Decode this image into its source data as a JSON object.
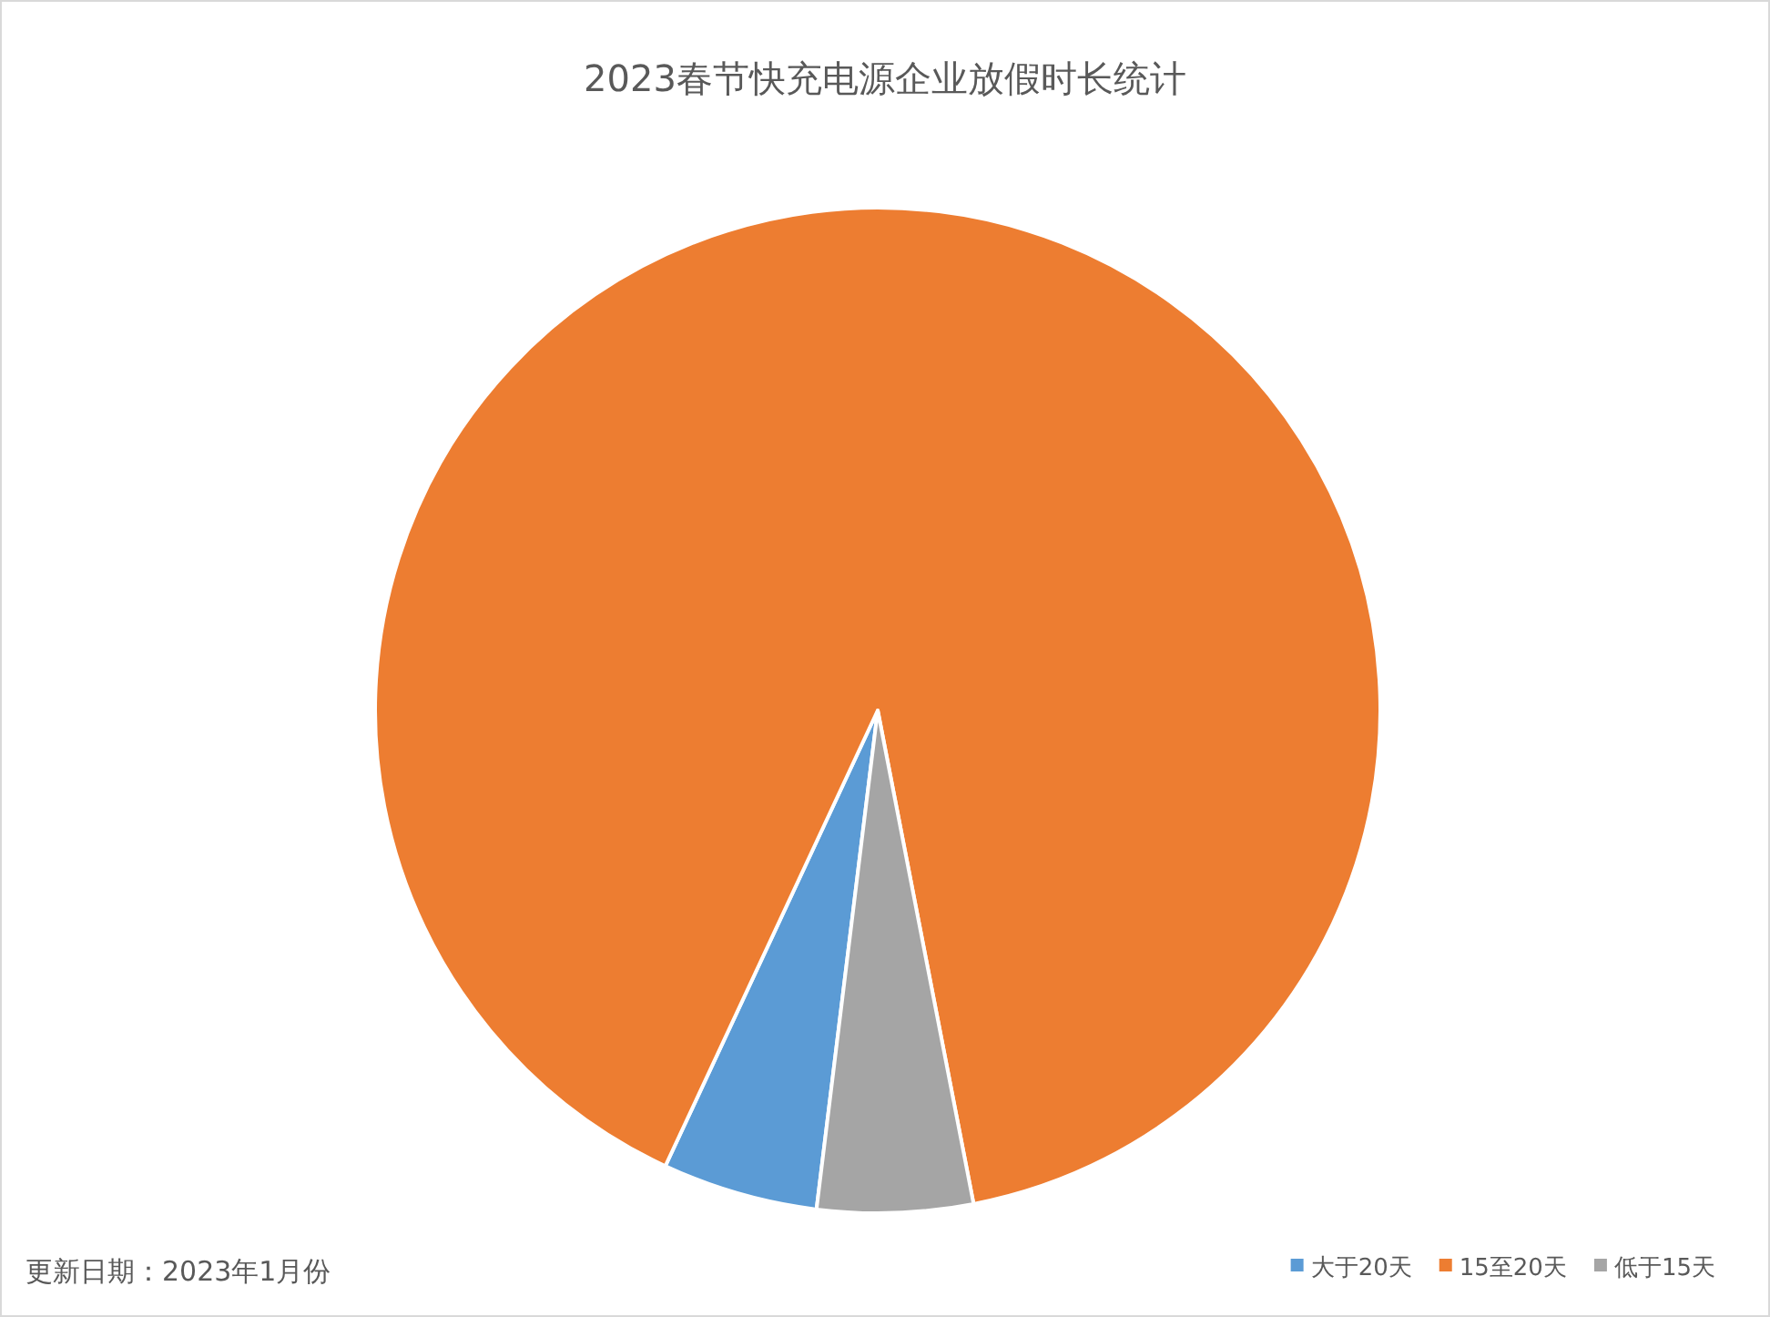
{
  "chart_data": {
    "type": "pie",
    "title": "2023春节快充电源企业放假时长统计",
    "categories": [
      "大于20天",
      "15至20天",
      "低于15天"
    ],
    "values": [
      5,
      90,
      5
    ],
    "colors": [
      "#5b9bd5",
      "#ed7d31",
      "#a5a5a5"
    ],
    "legend": "bottom right",
    "annotations": [
      "更新日期：2023年1月份"
    ]
  }
}
